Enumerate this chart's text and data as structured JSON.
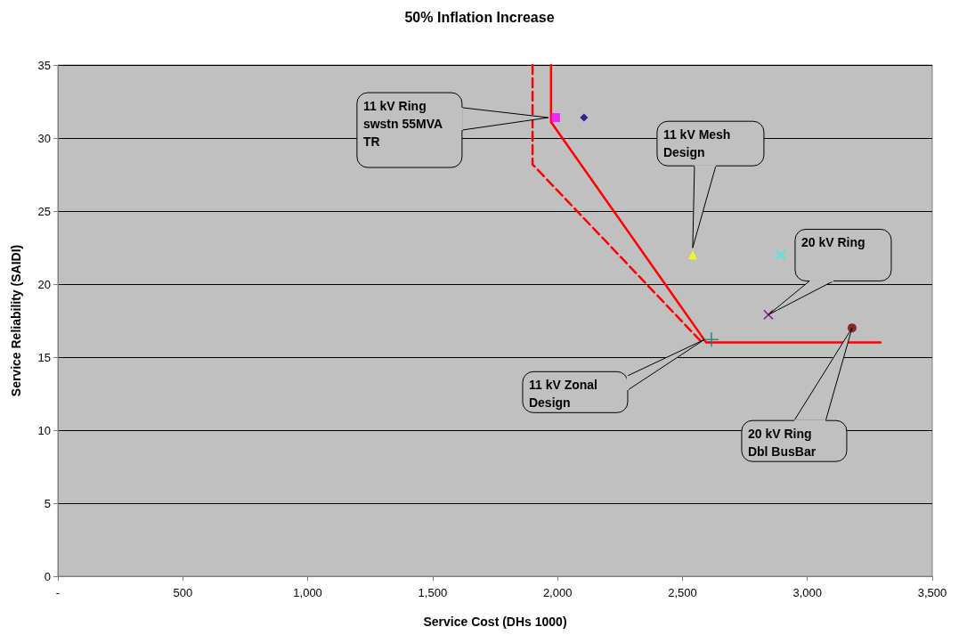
{
  "chart_data": {
    "type": "scatter",
    "title": "50% Inflation Increase",
    "xlabel": "Service Cost (DHs 1000)",
    "ylabel": "Service Reliability (SAIDI)",
    "xlim": [
      0,
      3500
    ],
    "xticks": [
      {
        "value": 0,
        "label": "-"
      },
      500,
      {
        "value": 1000,
        "label": "1,000"
      },
      {
        "value": 1500,
        "label": "1,500"
      },
      {
        "value": 2000,
        "label": "2,000"
      },
      {
        "value": 2500,
        "label": "2,500"
      },
      {
        "value": 3000,
        "label": "3,000"
      },
      {
        "value": 3500,
        "label": "3,500"
      }
    ],
    "ylim": [
      0,
      35
    ],
    "yticks": [
      0,
      5,
      10,
      15,
      20,
      25,
      30,
      35
    ],
    "grid": "y",
    "series": [
      {
        "type": "line",
        "color": "#ff0000",
        "marker": "none",
        "line_style": "solid",
        "x": [
          1974,
          1974,
          2595,
          3293
        ],
        "values": [
          35,
          31.1,
          16.0,
          16.0
        ]
      },
      {
        "type": "line",
        "color": "#ff0000",
        "marker": "none",
        "line_style": "dashed",
        "x": [
          1900,
          1900,
          2584
        ],
        "values": [
          35,
          28.2,
          15.9
        ]
      },
      {
        "type": "scatter",
        "color": "#ff00ff",
        "marker": "square",
        "x": [
          1992
        ],
        "values": [
          31.4
        ]
      },
      {
        "type": "scatter",
        "color": "#000080",
        "marker": "diamond",
        "x": [
          2106
        ],
        "values": [
          31.4
        ]
      },
      {
        "type": "scatter",
        "color": "#ffff00",
        "marker": "triangle",
        "x": [
          2541
        ],
        "values": [
          22.0
        ]
      },
      {
        "type": "scatter",
        "color": "#00ffff",
        "marker": "cross",
        "x": [
          2894
        ],
        "values": [
          22.0
        ]
      },
      {
        "type": "scatter",
        "color": "#800080",
        "marker": "cross",
        "x": [
          2844
        ],
        "values": [
          17.9
        ]
      },
      {
        "type": "scatter",
        "color": "#800000",
        "marker": "circle",
        "x": [
          3179
        ],
        "values": [
          17.0
        ]
      },
      {
        "type": "scatter",
        "color": "#008080",
        "marker": "plus",
        "x": [
          2616
        ],
        "values": [
          16.2
        ]
      }
    ],
    "annotations": [
      "11 kV Ring\nswstn 55MVA\nTR",
      "11 kV Mesh\nDesign",
      "20 kV Ring",
      "11 kV Zonal\nDesign",
      "20 kV Ring\nDbl BusBar"
    ]
  }
}
